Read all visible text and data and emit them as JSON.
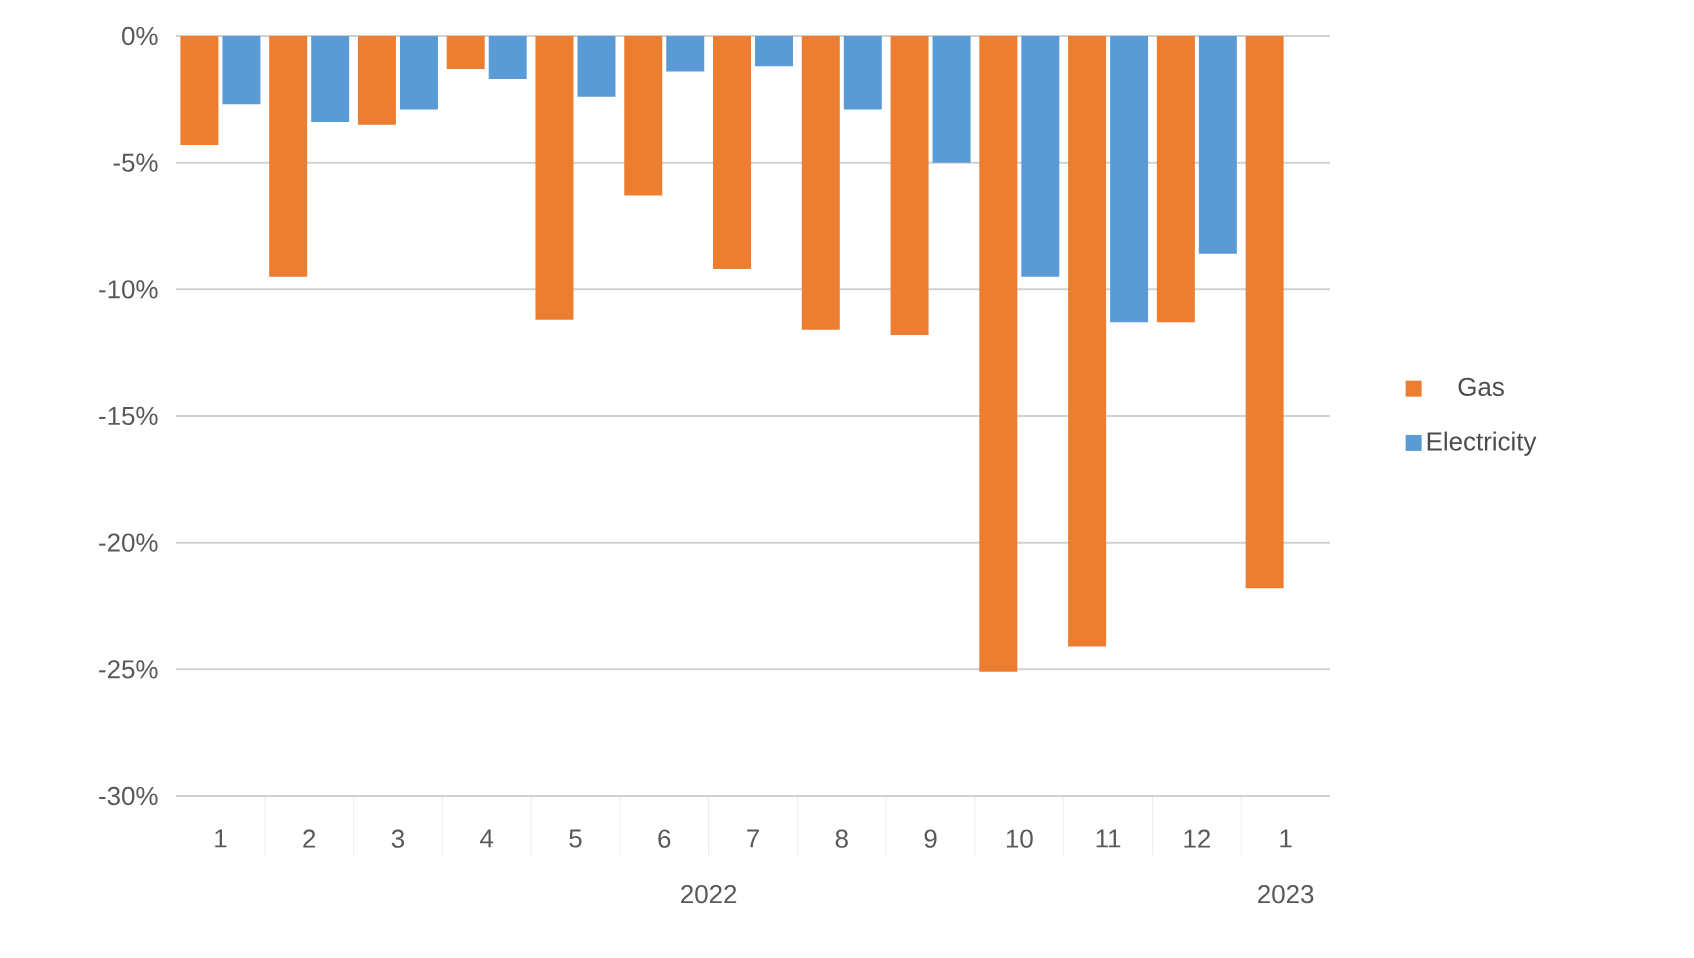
{
  "chart_data": {
    "type": "bar",
    "categories": [
      "1",
      "2",
      "3",
      "4",
      "5",
      "6",
      "7",
      "8",
      "9",
      "10",
      "11",
      "12",
      "1"
    ],
    "series": [
      {
        "name": "Gas",
        "color": "#ed7d31",
        "values": [
          -4.3,
          -9.5,
          -3.5,
          -1.3,
          -11.2,
          -6.3,
          -9.2,
          -11.6,
          -11.8,
          -25.1,
          -24.1,
          -11.3,
          -21.8
        ]
      },
      {
        "name": "Electricity",
        "color": "#5b9bd5",
        "values": [
          -2.7,
          -3.4,
          -2.9,
          -1.7,
          -2.4,
          -1.4,
          -1.2,
          -2.9,
          -5.0,
          -9.5,
          -11.3,
          -8.6,
          null
        ]
      }
    ],
    "ylim": [
      -30,
      0
    ],
    "yticks": [
      {
        "value": 0,
        "label": "0%"
      },
      {
        "value": -5,
        "label": "-5%"
      },
      {
        "value": -10,
        "label": "-10%"
      },
      {
        "value": -15,
        "label": "-15%"
      },
      {
        "value": -20,
        "label": "-20%"
      },
      {
        "value": -25,
        "label": "-25%"
      },
      {
        "value": -30,
        "label": "-30%"
      }
    ],
    "grid": "y",
    "legend": "right",
    "annotations": [
      "2022",
      "2023"
    ]
  }
}
